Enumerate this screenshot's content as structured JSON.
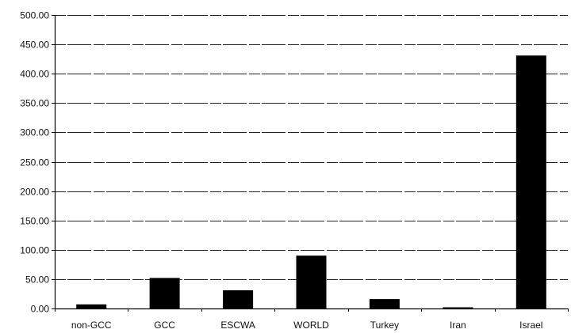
{
  "chart_data": {
    "type": "bar",
    "title": "",
    "xlabel": "",
    "ylabel": "",
    "categories": [
      "non-GCC",
      "GCC",
      "ESCWA",
      "WORLD",
      "Turkey",
      "Iran",
      "Israel"
    ],
    "values": [
      7,
      52,
      31,
      90,
      16,
      2,
      431
    ],
    "ylim": [
      0,
      500
    ],
    "yticks": [
      0,
      50,
      100,
      150,
      200,
      250,
      300,
      350,
      400,
      450,
      500
    ],
    "ytick_labels": [
      "0.00",
      "50.00",
      "100.00",
      "150.00",
      "200.00",
      "250.00",
      "300.00",
      "350.00",
      "400.00",
      "450.00",
      "500.00"
    ],
    "grid": true,
    "legend": "none",
    "bar_color": "#000000",
    "grid_color": "#222222"
  }
}
